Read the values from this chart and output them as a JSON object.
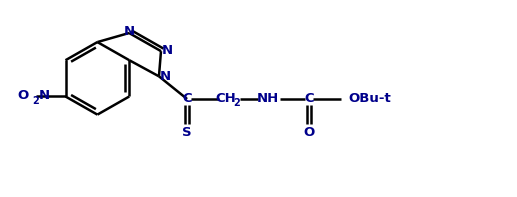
{
  "background_color": "#ffffff",
  "line_color": "#000000",
  "atom_color": "#00008b",
  "figsize": [
    5.17,
    1.97
  ],
  "dpi": 100,
  "bond_lw": 1.8,
  "font_size": 9.5,
  "sub_font_size": 7.0,
  "xlim": [
    0,
    10
  ],
  "ylim": [
    0,
    3.8
  ]
}
